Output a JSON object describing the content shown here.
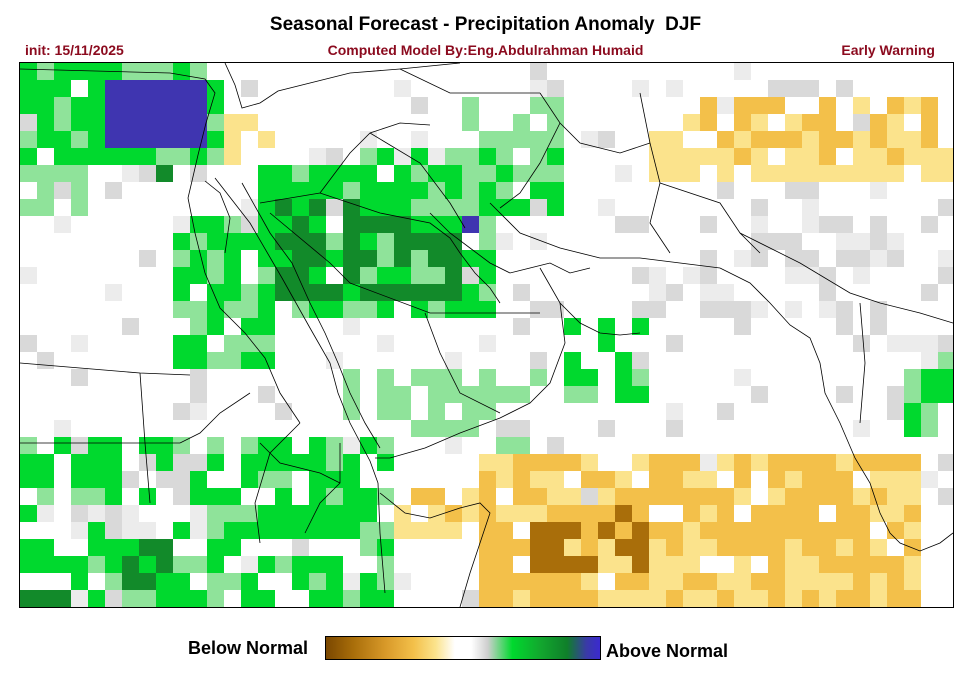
{
  "header": {
    "title": "Seasonal Forecast - Precipitation Anomaly  DJF",
    "init": "init: 15/11/2025",
    "credit": "Computed Model By:Eng.Abdulrahman Humaid",
    "warning": "Early Warning"
  },
  "map": {
    "variable": "Precipitation Anomaly",
    "season": "DJF",
    "colors": {
      "strong_below": "#a96e0a",
      "below": "#f3c04a",
      "slight_below": "#fbe38c",
      "normal": "#ffffff",
      "near_normal": "#d9d9d9",
      "slight_above": "#8fe39a",
      "above": "#00d92e",
      "strong_above": "#128a2a",
      "extreme_above": "#3f35b0",
      "border": "#000000"
    }
  },
  "legend": {
    "below_label": "Below Normal",
    "above_label": "Above Normal"
  }
}
